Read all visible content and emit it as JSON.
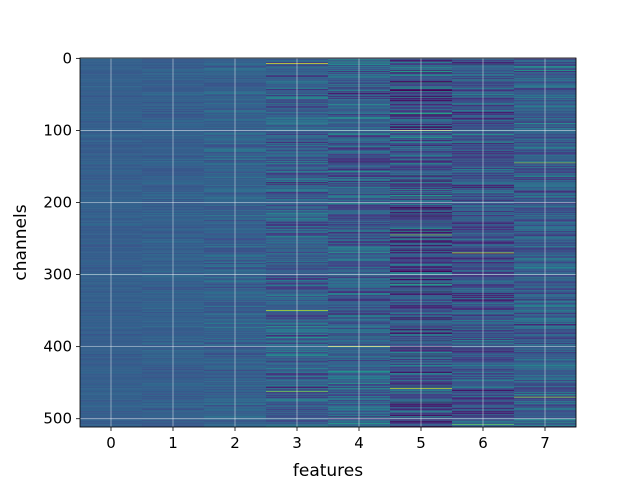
{
  "chart_data": {
    "type": "heatmap",
    "title": "",
    "xlabel": "features",
    "ylabel": "channels",
    "x_ticks": [
      0,
      1,
      2,
      3,
      4,
      5,
      6,
      7
    ],
    "y_ticks": [
      0,
      100,
      200,
      300,
      400,
      500
    ],
    "x_range": [
      -0.5,
      7.5
    ],
    "y_range": [
      511.5,
      -0.5
    ],
    "n_features": 8,
    "n_channels": 512,
    "grid": true,
    "colormap": "viridis",
    "feature_spread": [
      0.04,
      0.06,
      0.1,
      0.2,
      0.22,
      0.3,
      0.22,
      0.2
    ],
    "feature_center": [
      0.3,
      0.3,
      0.31,
      0.3,
      0.3,
      0.25,
      0.26,
      0.3
    ],
    "notable_cells": [
      {
        "feature": 3,
        "channel": 7,
        "value": 0.95
      },
      {
        "feature": 3,
        "channel": 350,
        "value": 0.9
      },
      {
        "feature": 3,
        "channel": 462,
        "value": 0.8
      },
      {
        "feature": 4,
        "channel": 400,
        "value": 0.95
      },
      {
        "feature": 5,
        "channel": 100,
        "value": 0.85
      },
      {
        "feature": 5,
        "channel": 245,
        "value": 0.8
      },
      {
        "feature": 5,
        "channel": 458,
        "value": 0.9
      },
      {
        "feature": 6,
        "channel": 270,
        "value": 0.9
      },
      {
        "feature": 6,
        "channel": 508,
        "value": 0.75
      },
      {
        "feature": 7,
        "channel": 145,
        "value": 0.8
      },
      {
        "feature": 7,
        "channel": 470,
        "value": 0.85
      }
    ]
  }
}
